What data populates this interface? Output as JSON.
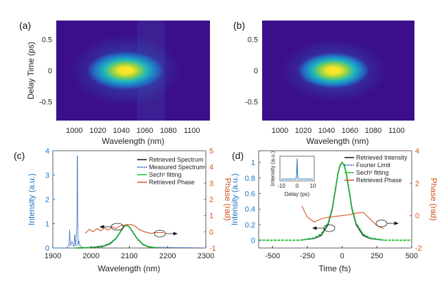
{
  "chart_data": [
    {
      "panel": "(a)",
      "type": "heatmap",
      "xlabel": "Wavelength (nm)",
      "ylabel": "Delay Time (ps)",
      "xlim": [
        980,
        1120
      ],
      "ylim": [
        -0.8,
        0.8
      ],
      "xticks": [
        "1000",
        "1020",
        "1040",
        "1060",
        "1080",
        "1100"
      ],
      "yticks": [
        "0.5",
        "0",
        "-0.5"
      ],
      "ytick_values": [
        0.5,
        0,
        -0.5
      ],
      "peak": {
        "wavelength": 1042,
        "delay": 0
      },
      "colormap": [
        "#3b0f8c",
        "#1f78c8",
        "#21b8b8",
        "#8fd14a",
        "#fde725"
      ]
    },
    {
      "panel": "(b)",
      "type": "heatmap",
      "xlabel": "Wavelength (nm)",
      "ylabel": "",
      "xlim": [
        980,
        1120
      ],
      "ylim": [
        -0.8,
        0.8
      ],
      "xticks": [
        "1000",
        "1020",
        "1040",
        "1060",
        "1080",
        "1100"
      ],
      "yticks": [
        "0.5",
        "0",
        "-0.5"
      ],
      "ytick_values": [
        0.5,
        0,
        -0.5
      ],
      "peak": {
        "wavelength": 1042,
        "delay": 0
      },
      "colormap": [
        "#3b0f8c",
        "#1f78c8",
        "#21b8b8",
        "#8fd14a",
        "#fde725"
      ]
    },
    {
      "panel": "(c)",
      "type": "line",
      "xlabel": "Wavelength (nm)",
      "ylabel": "Intensity (a.u.)",
      "ylabel_right": "Phase (rad)",
      "xlim": [
        1900,
        2300
      ],
      "ylim": [
        0,
        4
      ],
      "ylim_right": [
        -1,
        5
      ],
      "xticks": [
        "1900",
        "2000",
        "2100",
        "2200",
        "2300"
      ],
      "yticks": [
        "0",
        "1",
        "2",
        "3",
        "4"
      ],
      "yticks_right": [
        "-1",
        "0",
        "1",
        "2",
        "3",
        "4",
        "5"
      ],
      "legend": [
        "Retrieved Spectrum",
        "Measured Spectrum",
        "Sech² fitting",
        "Retrieved Phase"
      ],
      "series": [
        {
          "name": "Retrieved Spectrum",
          "color": "#111111",
          "x": [
            1960,
            2000,
            2030,
            2050,
            2065,
            2075,
            2085,
            2092,
            2100,
            2110,
            2120,
            2135,
            2150,
            2170
          ],
          "y": [
            0,
            0.01,
            0.05,
            0.17,
            0.38,
            0.62,
            0.88,
            0.95,
            0.88,
            0.62,
            0.38,
            0.14,
            0.04,
            0
          ]
        },
        {
          "name": "Measured Spectrum",
          "color": "#1f5fb8",
          "x": [
            1900,
            1935,
            1942,
            1944,
            1946,
            1950,
            1955,
            1957,
            1960,
            1963,
            1964,
            1966,
            1968,
            1972,
            1980,
            2000,
            2040,
            2060,
            2075,
            2085,
            2092,
            2100,
            2110,
            2125,
            2140,
            2160,
            2300
          ],
          "y": [
            0,
            0,
            0.1,
            0.75,
            0.1,
            0.25,
            0.05,
            0.55,
            0.08,
            1.05,
            3.8,
            0.1,
            0.3,
            0.05,
            0.02,
            0.02,
            0.12,
            0.3,
            0.6,
            0.85,
            0.93,
            0.87,
            0.6,
            0.3,
            0.1,
            0.03,
            0
          ]
        },
        {
          "name": "Sech² fitting",
          "color": "#22c02a",
          "x": [
            1960,
            2000,
            2030,
            2050,
            2065,
            2075,
            2085,
            2092,
            2100,
            2110,
            2120,
            2135,
            2150,
            2175
          ],
          "y": [
            0,
            0.02,
            0.07,
            0.2,
            0.4,
            0.63,
            0.87,
            0.94,
            0.87,
            0.63,
            0.4,
            0.16,
            0.05,
            0
          ]
        },
        {
          "name": "Retrieved Phase",
          "color": "#d2541e",
          "axis": "right",
          "x": [
            1985,
            1995,
            2005,
            2015,
            2025,
            2035,
            2045,
            2055,
            2065,
            2075,
            2085,
            2095,
            2105,
            2115,
            2125,
            2140,
            2155,
            2170,
            2190
          ],
          "y": [
            -0.1,
            0.15,
            0.0,
            0.2,
            0.05,
            0.25,
            0.1,
            0.3,
            0.2,
            0.35,
            0.4,
            0.45,
            0.45,
            0.35,
            0.15,
            0.0,
            -0.1,
            -0.05,
            -0.05
          ]
        }
      ]
    },
    {
      "panel": "(d)",
      "type": "line",
      "xlabel": "Time (fs)",
      "ylabel": "Intensity (a.u.)",
      "ylabel_right": "Phase (rad)",
      "xlim": [
        -600,
        500
      ],
      "ylim": [
        -0.1,
        1.15
      ],
      "ylim_right": [
        -2,
        4
      ],
      "xticks": [
        "-500",
        "-250",
        "0",
        "250",
        "500"
      ],
      "xtick_values": [
        -500,
        -250,
        0,
        250,
        500
      ],
      "yticks": [
        "0",
        "0.2",
        "0.4",
        "0.6",
        "0.8",
        "1"
      ],
      "ytick_values": [
        0,
        0.2,
        0.4,
        0.6,
        0.8,
        1
      ],
      "yticks_right": [
        "-2",
        "0",
        "2",
        "4"
      ],
      "ytick_values_right": [
        -2,
        0,
        2,
        4
      ],
      "legend": [
        "Retrieved Intensity",
        "Fourier Limit",
        "Sech² fitting",
        "Retrieved Phase"
      ],
      "series": [
        {
          "name": "Retrieved Intensity",
          "color": "#111111",
          "x": [
            -300,
            -200,
            -150,
            -100,
            -70,
            -50,
            -30,
            -15,
            0,
            15,
            30,
            50,
            70,
            100,
            150,
            200,
            300
          ],
          "y": [
            0,
            0.02,
            0.06,
            0.2,
            0.4,
            0.62,
            0.85,
            0.96,
            1.0,
            0.96,
            0.85,
            0.62,
            0.4,
            0.2,
            0.06,
            0.02,
            0
          ]
        },
        {
          "name": "Fourier Limit",
          "color": "#1f5fb8",
          "x": [
            -300,
            -200,
            -150,
            -100,
            -70,
            -50,
            -30,
            -15,
            0,
            15,
            30,
            50,
            70,
            100,
            150,
            200,
            300
          ],
          "y": [
            0,
            0.02,
            0.07,
            0.22,
            0.42,
            0.64,
            0.86,
            0.97,
            1.0,
            0.97,
            0.86,
            0.64,
            0.42,
            0.22,
            0.07,
            0.02,
            0
          ]
        },
        {
          "name": "Sech² fitting",
          "color": "#22c02a",
          "x": [
            -600,
            -300,
            -200,
            -150,
            -100,
            -70,
            -50,
            -30,
            -15,
            0,
            15,
            30,
            50,
            70,
            100,
            150,
            200,
            300,
            500
          ],
          "y": [
            0,
            0,
            0.03,
            0.08,
            0.22,
            0.42,
            0.64,
            0.86,
            0.96,
            1.0,
            0.96,
            0.86,
            0.64,
            0.42,
            0.22,
            0.08,
            0.03,
            0,
            0
          ]
        },
        {
          "name": "Retrieved Phase",
          "color": "#d2541e",
          "axis": "right",
          "x": [
            -290,
            -250,
            -200,
            -150,
            -100,
            -50,
            0,
            50,
            100,
            150,
            200,
            240,
            280,
            300
          ],
          "y": [
            0.6,
            -0.1,
            -0.4,
            -0.2,
            -0.1,
            -0.05,
            0,
            0.05,
            0.15,
            0.2,
            -0.2,
            -0.55,
            -0.75,
            -0.8
          ]
        }
      ],
      "inset": {
        "xlabel": "Delay (ps)",
        "ylabel": "Intensity (a.u.)",
        "xlim": [
          -10,
          10
        ],
        "xticks": [
          "-10",
          "0",
          "10"
        ],
        "xtick_values": [
          -10,
          0,
          10
        ],
        "series": {
          "x": [
            -10,
            -0.6,
            -0.25,
            0,
            0.25,
            0.6,
            10
          ],
          "y": [
            0.02,
            0.03,
            0.3,
            1.0,
            0.3,
            0.03,
            0.02
          ]
        }
      }
    }
  ]
}
